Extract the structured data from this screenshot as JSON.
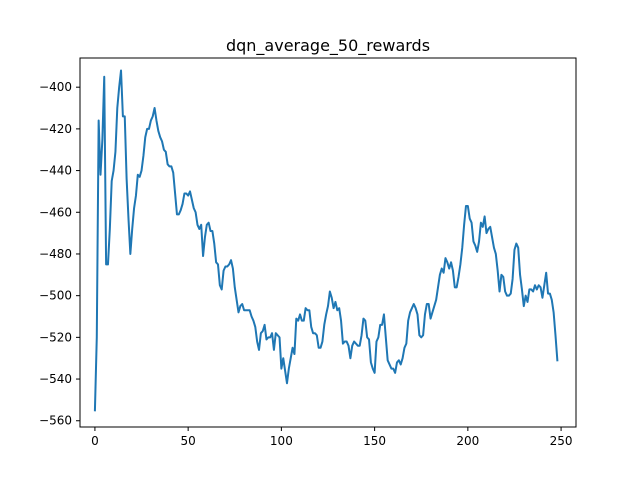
{
  "chart_data": {
    "type": "line",
    "title": "dqn_average_50_rewards",
    "xlabel": "",
    "ylabel": "",
    "xlim": [
      -8,
      258
    ],
    "ylim": [
      -563,
      -386
    ],
    "xticks": [
      0,
      50,
      100,
      150,
      200,
      250
    ],
    "yticks": [
      -560,
      -540,
      -520,
      -500,
      -480,
      -460,
      -440,
      -420,
      -400
    ],
    "xtick_labels": [
      "0",
      "50",
      "100",
      "150",
      "200",
      "250"
    ],
    "ytick_labels": [
      "−560",
      "−540",
      "−520",
      "−500",
      "−480",
      "−460",
      "−440",
      "−420",
      "−400"
    ],
    "grid": false,
    "legend": "none",
    "series": [
      {
        "color": "#1f77b4",
        "values": [
          -555,
          -520,
          -416,
          -442,
          -425,
          -395,
          -485,
          -485,
          -468,
          -445,
          -440,
          -431,
          -410,
          -400,
          -392,
          -414,
          -414,
          -444,
          -463,
          -480,
          -468,
          -458,
          -452,
          -442,
          -443,
          -440,
          -433,
          -424,
          -420,
          -420,
          -416,
          -414,
          -410,
          -416,
          -421,
          -424,
          -426,
          -430,
          -431,
          -437,
          -438,
          -438,
          -441,
          -451,
          -461,
          -461,
          -459,
          -456,
          -451,
          -451,
          -452,
          -450,
          -454,
          -458,
          -460,
          -466,
          -468,
          -466,
          -481,
          -472,
          -466,
          -465,
          -469,
          -469,
          -475,
          -484,
          -485,
          -495,
          -497,
          -488,
          -486,
          -486,
          -485,
          -483,
          -487,
          -496,
          -502,
          -508,
          -505,
          -504,
          -507,
          -507,
          -507,
          -507,
          -510,
          -512,
          -515,
          -522,
          -526,
          -518,
          -517,
          -514,
          -521,
          -520,
          -520,
          -518,
          -526,
          -518,
          -519,
          -520,
          -535,
          -530,
          -536,
          -542,
          -535,
          -530,
          -525,
          -528,
          -511,
          -512,
          -509,
          -512,
          -512,
          -506,
          -507,
          -507,
          -515,
          -518,
          -518,
          -519,
          -525,
          -525,
          -522,
          -514,
          -509,
          -505,
          -498,
          -501,
          -506,
          -503,
          -507,
          -506,
          -512,
          -523,
          -522,
          -522,
          -524,
          -530,
          -524,
          -522,
          -523,
          -524,
          -524,
          -519,
          -511,
          -512,
          -520,
          -521,
          -532,
          -535,
          -537,
          -522,
          -520,
          -514,
          -514,
          -509,
          -520,
          -531,
          -533,
          -535,
          -535,
          -537,
          -532,
          -531,
          -533,
          -530,
          -525,
          -523,
          -512,
          -508,
          -506,
          -504,
          -506,
          -509,
          -519,
          -520,
          -519,
          -509,
          -504,
          -504,
          -511,
          -508,
          -505,
          -502,
          -496,
          -490,
          -487,
          -489,
          -482,
          -484,
          -487,
          -484,
          -488,
          -496,
          -496,
          -491,
          -485,
          -477,
          -466,
          -457,
          -457,
          -463,
          -465,
          -474,
          -476,
          -479,
          -474,
          -465,
          -467,
          -462,
          -470,
          -468,
          -467,
          -472,
          -477,
          -480,
          -488,
          -498,
          -490,
          -491,
          -498,
          -500,
          -500,
          -499,
          -492,
          -478,
          -475,
          -477,
          -490,
          -497,
          -505,
          -500,
          -503,
          -497,
          -497,
          -498,
          -495,
          -497,
          -495,
          -496,
          -501,
          -495,
          -489,
          -499,
          -499,
          -502,
          -508,
          -519,
          -531
        ]
      }
    ]
  }
}
